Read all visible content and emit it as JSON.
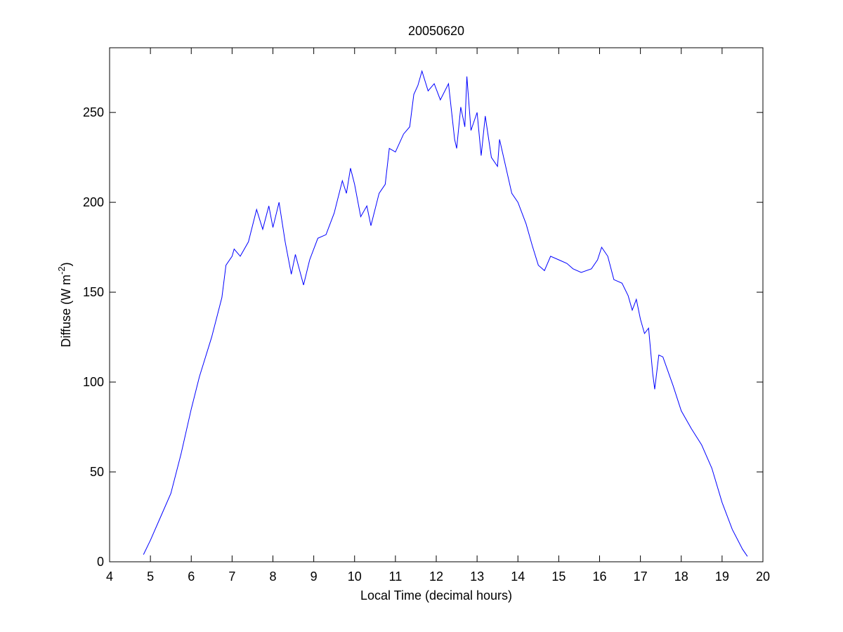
{
  "chart_data": {
    "type": "line",
    "title": "20050620",
    "xlabel": "Local Time (decimal hours)",
    "ylabel": [
      "Diffuse (W m",
      "-2",
      ")"
    ],
    "xlim": [
      4,
      20
    ],
    "xticks": [
      4,
      5,
      6,
      7,
      8,
      9,
      10,
      11,
      12,
      13,
      14,
      15,
      16,
      17,
      18,
      19,
      20
    ],
    "ylim": [
      0,
      286
    ],
    "yticks": [
      0,
      50,
      100,
      150,
      200,
      250
    ],
    "grid": false,
    "series": [
      {
        "color": "#0000ff",
        "x": [
          4.83,
          5.0,
          5.25,
          5.5,
          5.75,
          6.0,
          6.2,
          6.5,
          6.75,
          6.85,
          7.0,
          7.05,
          7.2,
          7.4,
          7.6,
          7.75,
          7.9,
          8.0,
          8.15,
          8.3,
          8.45,
          8.55,
          8.75,
          8.9,
          9.1,
          9.3,
          9.5,
          9.7,
          9.8,
          9.9,
          10.0,
          10.15,
          10.3,
          10.4,
          10.6,
          10.75,
          10.85,
          11.0,
          11.2,
          11.35,
          11.45,
          11.55,
          11.65,
          11.8,
          11.95,
          12.1,
          12.3,
          12.45,
          12.5,
          12.6,
          12.7,
          12.75,
          12.85,
          13.0,
          13.1,
          13.2,
          13.35,
          13.5,
          13.55,
          13.7,
          13.85,
          14.0,
          14.2,
          14.35,
          14.5,
          14.65,
          14.8,
          15.0,
          15.2,
          15.35,
          15.55,
          15.8,
          15.95,
          16.05,
          16.2,
          16.35,
          16.55,
          16.7,
          16.8,
          16.9,
          17.0,
          17.1,
          17.2,
          17.3,
          17.35,
          17.45,
          17.55,
          17.8,
          18.0,
          18.25,
          18.5,
          18.75,
          19.0,
          19.25,
          19.5,
          19.62
        ],
        "values": [
          4,
          12,
          25,
          38,
          60,
          85,
          103,
          125,
          147,
          165,
          170,
          174,
          170,
          178,
          196,
          185,
          198,
          186,
          200,
          178,
          160,
          171,
          154,
          168,
          180,
          182,
          194,
          212,
          205,
          219,
          210,
          192,
          198,
          187,
          205,
          210,
          230,
          228,
          238,
          242,
          260,
          265,
          273,
          262,
          266,
          257,
          266,
          235,
          230,
          253,
          242,
          270,
          240,
          250,
          226,
          248,
          225,
          220,
          235,
          220,
          205,
          200,
          188,
          176,
          165,
          162,
          170,
          168,
          166,
          163,
          161,
          163,
          168,
          175,
          170,
          157,
          155,
          148,
          140,
          146,
          135,
          127,
          130,
          105,
          96,
          115,
          114,
          98,
          84,
          74,
          65,
          52,
          33,
          18,
          7,
          3
        ]
      }
    ]
  }
}
